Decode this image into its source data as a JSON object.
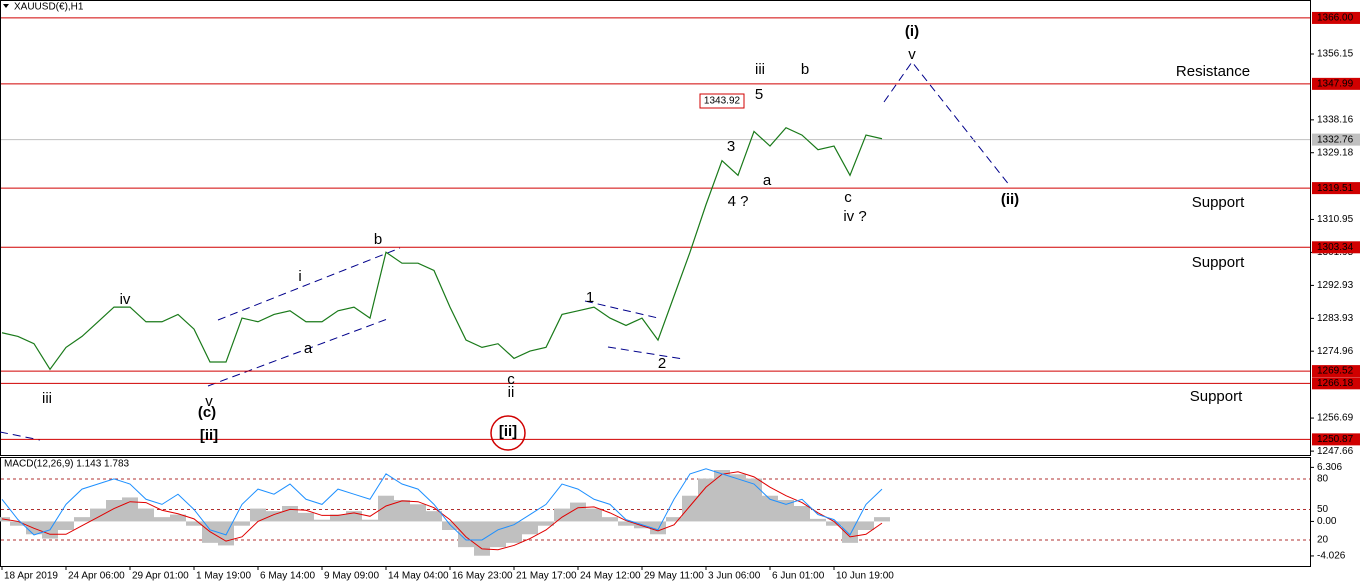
{
  "chart_data": [
    {
      "type": "line",
      "title": "XAUUSD(€),H1",
      "categories": [
        "18 Apr 2019",
        null,
        null,
        null,
        "24 Apr 06:00",
        null,
        null,
        null,
        "29 Apr 01:00",
        null,
        null,
        null,
        "1 May 19:00",
        null,
        null,
        null,
        "6 May 14:00",
        null,
        null,
        null,
        "9 May 09:00",
        null,
        null,
        null,
        "14 May 04:00",
        null,
        null,
        null,
        "16 May 23:00",
        null,
        null,
        null,
        "21 May 17:00",
        null,
        null,
        null,
        "24 May 12:00",
        null,
        null,
        null,
        "29 May 11:00",
        null,
        null,
        null,
        "3 Jun 06:00",
        null,
        null,
        null,
        "6 Jun 01:00",
        null,
        null,
        null,
        "10 Jun 19:00",
        null,
        null,
        null
      ],
      "series": [
        {
          "color": "#1a7a1a",
          "values": [
            1280,
            1279,
            1277,
            1270,
            1276,
            1279,
            1283,
            1287,
            1287,
            1283,
            1283,
            1285,
            1281,
            1272,
            1272,
            1284,
            1283,
            1285,
            1286,
            1283,
            1283,
            1286,
            1287,
            1284,
            1302,
            1299,
            1299,
            1297,
            1287,
            1278,
            1276,
            1277,
            1273,
            1275,
            1276,
            1285,
            1286,
            1287,
            1284,
            1282,
            1284,
            1278,
            1290,
            1302,
            1315,
            1327,
            1323,
            1335,
            1331,
            1336,
            1334,
            1330,
            1331,
            1323,
            1334,
            1333
          ]
        }
      ],
      "ylim": [
        1246.6,
        1370.9
      ],
      "yticks": [
        1356.15,
        1338.16,
        1329.18,
        1310.95,
        1301.95,
        1292.93,
        1283.93,
        1274.96,
        1256.69,
        1247.66
      ],
      "hlines": [
        {
          "value": 1366,
          "label": "1366.00"
        },
        {
          "value": 1347.99,
          "label": "1347.99"
        },
        {
          "value": 1319.51,
          "label": "1319.51"
        },
        {
          "value": 1303.34,
          "label": "1303.34"
        },
        {
          "value": 1269.52,
          "label": "1269.52"
        },
        {
          "value": 1266.18,
          "label": "1266.18"
        },
        {
          "value": 1250.87,
          "label": "1250.87"
        }
      ],
      "hline_color": "#d00000",
      "current_price": 1332.76,
      "annotations": [
        {
          "text": "(i)",
          "color": "#00008b"
        },
        {
          "text": "v",
          "color": "#e020e0"
        },
        {
          "text": "Resistance",
          "color": "#d00000"
        },
        {
          "text": "iii",
          "color": "#e020e0"
        },
        {
          "text": "b",
          "color": "#000000"
        },
        {
          "text": "5",
          "color": "#000000"
        },
        {
          "text": "1343.92",
          "color": "#d00000",
          "box": true
        },
        {
          "text": "3",
          "color": "#000000"
        },
        {
          "text": "a",
          "color": "#000000"
        },
        {
          "text": "4 ?",
          "color": "#000000"
        },
        {
          "text": "c",
          "color": "#000000"
        },
        {
          "text": "iv ?",
          "color": "#e020e0"
        },
        {
          "text": "(ii)",
          "color": "#00008b"
        },
        {
          "text": "Support",
          "color": "#d00000"
        },
        {
          "text": "Support",
          "color": "#d00000"
        },
        {
          "text": "Support",
          "color": "#d00000"
        },
        {
          "text": "b",
          "color": "#000000"
        },
        {
          "text": "i",
          "color": "#e020e0"
        },
        {
          "text": "a",
          "color": "#000000"
        },
        {
          "text": "iv",
          "color": "#e020e0"
        },
        {
          "text": "iii",
          "color": "#e020e0"
        },
        {
          "text": "v",
          "color": "#e020e0"
        },
        {
          "text": "(c)",
          "color": "#00008b"
        },
        {
          "text": "[ii]",
          "color": "#007a00"
        },
        {
          "text": "c",
          "color": "#000000"
        },
        {
          "text": "ii",
          "color": "#e020e0"
        },
        {
          "text": "[ii]",
          "color": "#007a00"
        },
        {
          "text": "1",
          "color": "#000000"
        },
        {
          "text": "2",
          "color": "#000000"
        }
      ]
    },
    {
      "type": "macd",
      "title": "MACD(12,26,9) 1.143 1.783",
      "series": [
        {
          "kind": "bar",
          "color": "#c0c0c0",
          "values": [
            0.5,
            -0.5,
            -1.5,
            -2,
            -1,
            0.5,
            1.5,
            2.5,
            2.8,
            1.5,
            0.5,
            0.8,
            -0.5,
            -2.5,
            -2.8,
            -0.5,
            1.5,
            1.2,
            1.8,
            1,
            0.2,
            0.8,
            1.2,
            0.2,
            3,
            2.5,
            2,
            1.2,
            -1,
            -3,
            -4,
            -3,
            -2.5,
            -1.5,
            -0.5,
            1.5,
            2.2,
            1.5,
            0.5,
            -0.5,
            -0.8,
            -1.5,
            0.5,
            3,
            5,
            6,
            5.5,
            5,
            3,
            2.5,
            1.8,
            0.3,
            -0.5,
            -2.5,
            -1,
            0.5
          ]
        },
        {
          "kind": "line",
          "color": "#e00000",
          "values": [
            0.3,
            0,
            -0.8,
            -1.5,
            -1.5,
            -0.5,
            0.5,
            1.5,
            2.3,
            2.2,
            1.3,
            0.9,
            0.3,
            -1.2,
            -2.3,
            -1.8,
            0,
            0.8,
            1.4,
            1.3,
            0.7,
            0.7,
            1,
            0.6,
            1.8,
            2.4,
            2.3,
            1.6,
            0.2,
            -1.8,
            -3.2,
            -3.3,
            -2.8,
            -2,
            -1,
            0.5,
            1.6,
            1.7,
            1,
            0.1,
            -0.5,
            -1.1,
            -0.4,
            1.8,
            4,
            5.5,
            5.8,
            5.2,
            4,
            3,
            2.2,
            1,
            0,
            -1.8,
            -1.5,
            -0.2
          ]
        },
        {
          "kind": "line",
          "axis": "y2",
          "color": "#1e90ff",
          "values": [
            60,
            40,
            25,
            30,
            55,
            70,
            75,
            80,
            75,
            60,
            55,
            65,
            50,
            30,
            25,
            55,
            70,
            65,
            75,
            60,
            55,
            70,
            65,
            60,
            85,
            75,
            70,
            55,
            35,
            20,
            20,
            30,
            35,
            45,
            55,
            75,
            70,
            60,
            55,
            40,
            35,
            30,
            60,
            85,
            90,
            85,
            80,
            75,
            60,
            55,
            60,
            45,
            40,
            25,
            55,
            70
          ]
        }
      ],
      "ylim": [
        -5.2,
        7.4
      ],
      "yticks": [
        6.306,
        {
          "value": 0,
          "label": "0.00"
        },
        -4.026
      ],
      "y2lim": [
        -5.6,
        100.6
      ],
      "y2ticks": [
        80,
        50,
        20
      ]
    }
  ]
}
